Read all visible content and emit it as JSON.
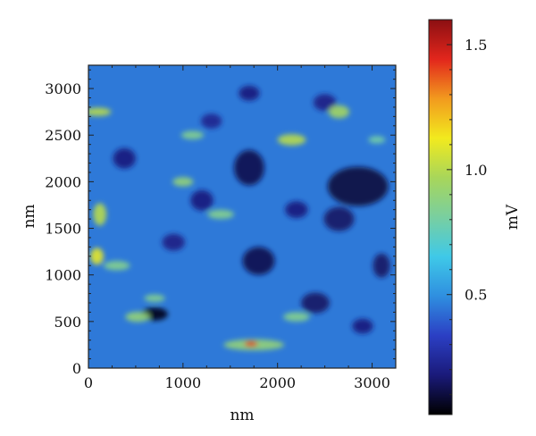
{
  "chart_data": {
    "type": "heatmap",
    "title": "",
    "xlabel": "nm",
    "ylabel": "nm",
    "xlim": [
      0,
      3250
    ],
    "ylim": [
      0,
      3250
    ],
    "x_ticks": [
      {
        "value": 0,
        "label": "0"
      },
      {
        "value": 1000,
        "label": "1000"
      },
      {
        "value": 2000,
        "label": "2000"
      },
      {
        "value": 3000,
        "label": "3000"
      }
    ],
    "y_ticks": [
      {
        "value": 0,
        "label": "0"
      },
      {
        "value": 500,
        "label": "500"
      },
      {
        "value": 1000,
        "label": "1000"
      },
      {
        "value": 1500,
        "label": "1500"
      },
      {
        "value": 2000,
        "label": "2000"
      },
      {
        "value": 2500,
        "label": "2500"
      },
      {
        "value": 3000,
        "label": "3000"
      }
    ],
    "colorbar": {
      "label": "mV",
      "range": [
        0.02,
        1.6
      ],
      "ticks": [
        {
          "value": 0.5,
          "label": "0.5"
        },
        {
          "value": 1.0,
          "label": "1.0"
        },
        {
          "value": 1.5,
          "label": "1.5"
        }
      ],
      "colormap": [
        "#000000",
        "#1a1a7a",
        "#2b3fc4",
        "#2f8fe0",
        "#3fc9e8",
        "#79cfa0",
        "#a8d65a",
        "#f2ea1e",
        "#f29a1e",
        "#e2261c",
        "#8b0f12"
      ]
    },
    "background_value": 0.45,
    "features": [
      {
        "kind": "low",
        "x": 1700,
        "y": 2150,
        "rx": 160,
        "ry": 190,
        "value": 0.12
      },
      {
        "kind": "low",
        "x": 2850,
        "y": 1950,
        "rx": 320,
        "ry": 210,
        "value": 0.1
      },
      {
        "kind": "low",
        "x": 1800,
        "y": 1150,
        "rx": 170,
        "ry": 150,
        "value": 0.12
      },
      {
        "kind": "low",
        "x": 700,
        "y": 580,
        "rx": 140,
        "ry": 70,
        "value": 0.05
      },
      {
        "kind": "low",
        "x": 2650,
        "y": 1600,
        "rx": 160,
        "ry": 130,
        "value": 0.15
      },
      {
        "kind": "low",
        "x": 1200,
        "y": 1800,
        "rx": 120,
        "ry": 110,
        "value": 0.18
      },
      {
        "kind": "low",
        "x": 2400,
        "y": 700,
        "rx": 150,
        "ry": 110,
        "value": 0.15
      },
      {
        "kind": "low",
        "x": 380,
        "y": 2250,
        "rx": 120,
        "ry": 110,
        "value": 0.18
      },
      {
        "kind": "low",
        "x": 1700,
        "y": 2950,
        "rx": 110,
        "ry": 80,
        "value": 0.18
      },
      {
        "kind": "low",
        "x": 3100,
        "y": 1100,
        "rx": 90,
        "ry": 130,
        "value": 0.15
      },
      {
        "kind": "low",
        "x": 2200,
        "y": 1700,
        "rx": 120,
        "ry": 90,
        "value": 0.18
      },
      {
        "kind": "low",
        "x": 900,
        "y": 1350,
        "rx": 120,
        "ry": 90,
        "value": 0.2
      },
      {
        "kind": "low",
        "x": 2900,
        "y": 450,
        "rx": 110,
        "ry": 80,
        "value": 0.18
      },
      {
        "kind": "low",
        "x": 1300,
        "y": 2650,
        "rx": 110,
        "ry": 80,
        "value": 0.22
      },
      {
        "kind": "low",
        "x": 2500,
        "y": 2850,
        "rx": 120,
        "ry": 90,
        "value": 0.2
      },
      {
        "kind": "high",
        "x": 100,
        "y": 2750,
        "rx": 140,
        "ry": 45,
        "value": 1.0
      },
      {
        "kind": "high",
        "x": 120,
        "y": 1650,
        "rx": 70,
        "ry": 120,
        "value": 1.0
      },
      {
        "kind": "high",
        "x": 90,
        "y": 1200,
        "rx": 70,
        "ry": 90,
        "value": 1.1
      },
      {
        "kind": "high",
        "x": 2150,
        "y": 2450,
        "rx": 150,
        "ry": 60,
        "value": 1.0
      },
      {
        "kind": "high",
        "x": 2650,
        "y": 2750,
        "rx": 110,
        "ry": 70,
        "value": 0.95
      },
      {
        "kind": "high",
        "x": 1000,
        "y": 2000,
        "rx": 110,
        "ry": 50,
        "value": 0.9
      },
      {
        "kind": "high",
        "x": 1750,
        "y": 250,
        "rx": 320,
        "ry": 60,
        "value": 0.9
      },
      {
        "kind": "high",
        "x": 1720,
        "y": 260,
        "rx": 70,
        "ry": 30,
        "value": 1.45
      },
      {
        "kind": "high",
        "x": 520,
        "y": 550,
        "rx": 130,
        "ry": 55,
        "value": 0.9
      },
      {
        "kind": "high",
        "x": 1400,
        "y": 1650,
        "rx": 140,
        "ry": 50,
        "value": 0.85
      },
      {
        "kind": "high",
        "x": 300,
        "y": 1100,
        "rx": 140,
        "ry": 50,
        "value": 0.85
      },
      {
        "kind": "high",
        "x": 1100,
        "y": 2500,
        "rx": 120,
        "ry": 45,
        "value": 0.85
      },
      {
        "kind": "high",
        "x": 2200,
        "y": 550,
        "rx": 140,
        "ry": 50,
        "value": 0.85
      },
      {
        "kind": "high",
        "x": 700,
        "y": 750,
        "rx": 110,
        "ry": 40,
        "value": 0.85
      },
      {
        "kind": "high",
        "x": 3050,
        "y": 2450,
        "rx": 90,
        "ry": 40,
        "value": 0.8
      }
    ]
  }
}
